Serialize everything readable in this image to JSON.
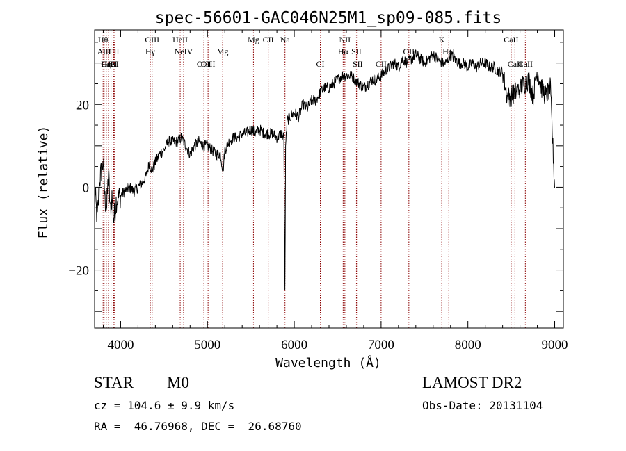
{
  "chart_data": {
    "type": "line",
    "title": "spec-56601-GAC046N25M1_sp09-085.fits",
    "xlabel": "Wavelength (Å)",
    "ylabel": "Flux (relative)",
    "xlim": [
      3700,
      9100
    ],
    "ylim": [
      -34,
      38
    ],
    "xticks": [
      4000,
      5000,
      6000,
      7000,
      8000,
      9000
    ],
    "yticks": [
      -20,
      0,
      20
    ],
    "x_minor_step": 200,
    "y_minor_step": 5,
    "line_color": "#000000",
    "marker_color": "#8b0000",
    "spectrum_anchor_points": {
      "x": [
        3700,
        3730,
        3760,
        3800,
        3820,
        3840,
        3860,
        3880,
        3900,
        3920,
        3950,
        4000,
        4050,
        4100,
        4150,
        4200,
        4250,
        4300,
        4330,
        4360,
        4400,
        4450,
        4500,
        4550,
        4600,
        4650,
        4700,
        4750,
        4800,
        4850,
        4900,
        4950,
        5000,
        5050,
        5100,
        5150,
        5180,
        5200,
        5250,
        5300,
        5350,
        5400,
        5450,
        5500,
        5550,
        5600,
        5650,
        5700,
        5750,
        5800,
        5850,
        5880,
        5893,
        5900,
        5920,
        5950,
        6000,
        6050,
        6100,
        6150,
        6200,
        6250,
        6300,
        6350,
        6400,
        6450,
        6500,
        6550,
        6600,
        6650,
        6700,
        6750,
        6800,
        6850,
        6900,
        6950,
        7000,
        7050,
        7100,
        7150,
        7200,
        7250,
        7300,
        7350,
        7400,
        7450,
        7500,
        7550,
        7600,
        7650,
        7700,
        7750,
        7800,
        7850,
        7900,
        7950,
        8000,
        8050,
        8100,
        8150,
        8200,
        8250,
        8300,
        8350,
        8400,
        8450,
        8500,
        8550,
        8600,
        8650,
        8700,
        8750,
        8800,
        8850,
        8900,
        8950,
        9000
      ],
      "y": [
        0,
        -8,
        2,
        6,
        -3,
        -5,
        4,
        -6,
        -2,
        -8,
        -3,
        -2,
        -1,
        0,
        -1,
        0,
        1,
        3,
        6,
        4,
        6,
        8,
        9,
        11,
        11,
        11,
        12,
        10,
        8,
        10,
        11,
        10,
        10,
        9,
        8,
        8,
        4,
        9,
        11,
        12,
        12,
        13,
        13,
        14,
        13,
        14,
        13,
        13,
        13,
        12,
        13,
        12,
        -28,
        10,
        16,
        17,
        18,
        17,
        20,
        19,
        21,
        21,
        23,
        24,
        24,
        25,
        26,
        27,
        27,
        27,
        26,
        25,
        24,
        25,
        26,
        26,
        27,
        28,
        29,
        30,
        29,
        31,
        30,
        31,
        32,
        31,
        30,
        31,
        32,
        31,
        30,
        30,
        32,
        31,
        30,
        30,
        29,
        30,
        29,
        30,
        30,
        29,
        29,
        28,
        28,
        22,
        22,
        23,
        24,
        25,
        26,
        22,
        28,
        24,
        22,
        24,
        0
      ]
    },
    "line_markers": [
      {
        "label": "Hθ",
        "x": 3798,
        "row": 1
      },
      {
        "label": "AlII",
        "x": 3810,
        "row": 2
      },
      {
        "label": "CaII",
        "x": 3860,
        "row": 3
      },
      {
        "label": "Hη",
        "x": 3835,
        "row": 3
      },
      {
        "label": "CII",
        "x": 3920,
        "row": 2
      },
      {
        "label": "CI",
        "x": 3930,
        "row": 3
      },
      {
        "label": "HeI",
        "x": 3889,
        "row": 3
      },
      {
        "label": "OIII",
        "x": 4363,
        "row": 1
      },
      {
        "label": "Hγ",
        "x": 4341,
        "row": 2
      },
      {
        "label": "HeII",
        "x": 4686,
        "row": 1
      },
      {
        "label": "NeIV",
        "x": 4725,
        "row": 2
      },
      {
        "label": "OIII",
        "x": 4959,
        "row": 3
      },
      {
        "label": "OIII",
        "x": 5007,
        "row": 3
      },
      {
        "label": "Mg",
        "x": 5175,
        "row": 2
      },
      {
        "label": "Mg",
        "x": 5530,
        "row": 1
      },
      {
        "label": "CII",
        "x": 5700,
        "row": 1
      },
      {
        "label": "Na",
        "x": 5893,
        "row": 1
      },
      {
        "label": "CI",
        "x": 6300,
        "row": 3
      },
      {
        "label": "NII",
        "x": 6583,
        "row": 1
      },
      {
        "label": "Hα",
        "x": 6563,
        "row": 2
      },
      {
        "label": "SII",
        "x": 6716,
        "row": 2
      },
      {
        "label": "SII",
        "x": 6731,
        "row": 3
      },
      {
        "label": "CII",
        "x": 7000,
        "row": 3
      },
      {
        "label": "OII",
        "x": 7320,
        "row": 2
      },
      {
        "label": "K",
        "x": 7699,
        "row": 1
      },
      {
        "label": "HeI",
        "x": 7780,
        "row": 2
      },
      {
        "label": "CaII",
        "x": 8498,
        "row": 1
      },
      {
        "label": "CaII",
        "x": 8542,
        "row": 3
      },
      {
        "label": "CaII",
        "x": 8662,
        "row": 3
      }
    ]
  },
  "footer": {
    "object_type": "STAR",
    "subclass": "M0",
    "survey": "LAMOST DR2",
    "velocity": "cz = 104.6 ± 9.9 km/s",
    "obs_date": "Obs-Date: 20131104",
    "coords": "RA =  46.76968, DEC =  26.68760"
  }
}
